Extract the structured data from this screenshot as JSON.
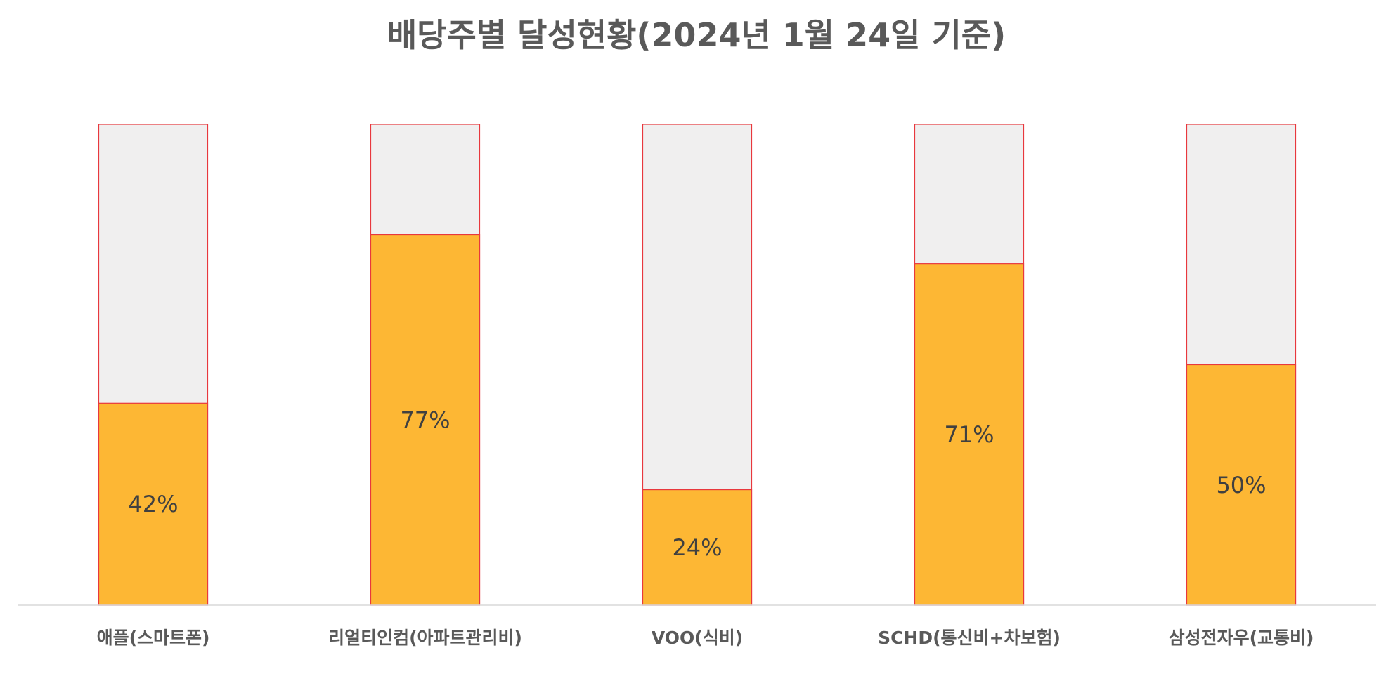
{
  "chart_data": {
    "type": "bar",
    "stacked": true,
    "title": "배당주별 달성현황(2024년 1월 24일 기준)",
    "categories": [
      "애플(스마트폰)",
      "리얼티인컴(아파트관리비)",
      "VOO(식비)",
      "SCHD(통신비+차보험)",
      "삼성전자우(교통비)"
    ],
    "values": [
      42,
      77,
      24,
      71,
      50
    ],
    "data_labels": [
      "42%",
      "77%",
      "24%",
      "71%",
      "50%"
    ],
    "ylim": [
      0,
      100
    ],
    "grid": false,
    "legend": "none",
    "colors": {
      "achieved": "#FDB734",
      "remaining": "#F0EFEF",
      "bar_border": "#E8383D",
      "axis": "#D9D9D9",
      "title_text": "#595959",
      "tick_text": "#595959",
      "data_label_text": "#404040"
    }
  }
}
